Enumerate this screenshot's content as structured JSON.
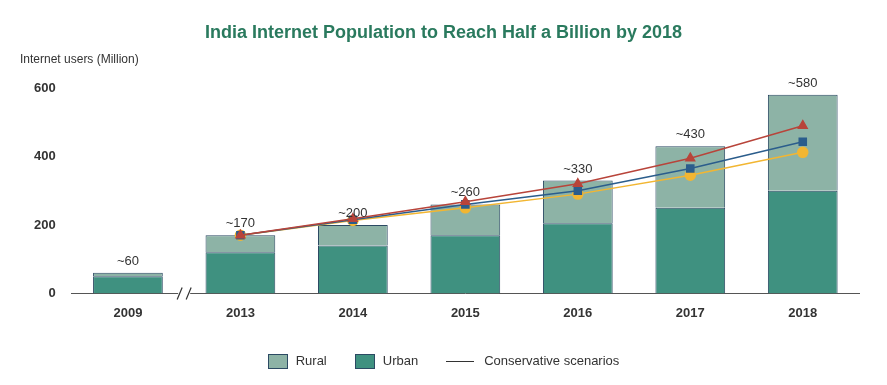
{
  "chart_data": {
    "type": "bar",
    "title": "India Internet Population to Reach Half a Billion by 2018",
    "y_label": "Internet users (Million)",
    "categories": [
      "2009",
      "2013",
      "2014",
      "2015",
      "2016",
      "2017",
      "2018"
    ],
    "series": [
      {
        "name": "Rural",
        "color": "#8db3a6",
        "values": [
          10,
          50,
          60,
          90,
          125,
          180,
          280
        ]
      },
      {
        "name": "Urban",
        "color": "#3f9180",
        "values": [
          50,
          120,
          140,
          170,
          205,
          250,
          300
        ]
      }
    ],
    "totals": [
      60,
      170,
      200,
      260,
      330,
      430,
      580
    ],
    "total_labels": [
      "~60",
      "~170",
      "~200",
      "~260",
      "~330",
      "~430",
      "~580"
    ],
    "scenarios": {
      "name": "Conservative scenarios",
      "color": "#333333",
      "series": [
        {
          "type": "line",
          "color": "#b8443a",
          "marker": "triangle",
          "values": [
            null,
            170,
            218,
            268,
            320,
            395,
            490
          ]
        },
        {
          "type": "line",
          "color": "#2b5d8c",
          "marker": "square",
          "values": [
            null,
            170,
            215,
            260,
            300,
            365,
            443
          ]
        },
        {
          "type": "line",
          "color": "#f2b632",
          "marker": "circle",
          "values": [
            null,
            170,
            213,
            250,
            290,
            345,
            412
          ]
        }
      ]
    },
    "stacked": true,
    "ylim": [
      0,
      600
    ],
    "yticks": [
      0,
      200,
      400,
      600
    ],
    "grid": false,
    "legend": "bottom"
  }
}
